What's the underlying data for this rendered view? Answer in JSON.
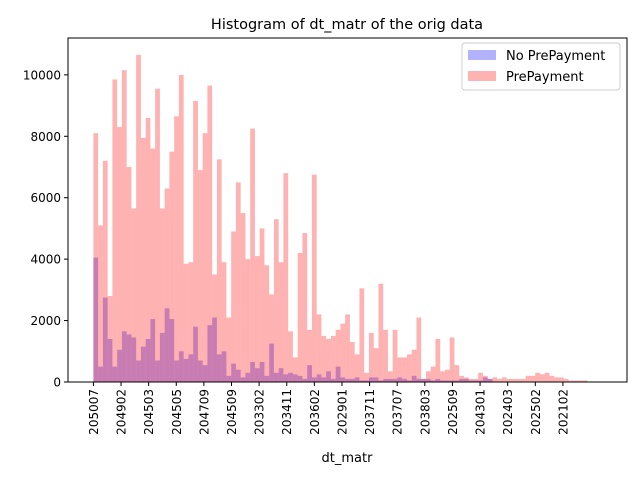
{
  "chart_data": {
    "type": "bar",
    "title": "Histogram of dt_matr of the orig data",
    "xlabel": "dt_matr",
    "ylabel": "",
    "ylim": [
      0,
      11200
    ],
    "yticks": [
      0,
      2000,
      4000,
      6000,
      8000,
      10000
    ],
    "xlim": [
      -2.3,
      48.3
    ],
    "x_tick_labels": [
      "205007",
      "204902",
      "204503",
      "204505",
      "204709",
      "204509",
      "203302",
      "203411",
      "203602",
      "202901",
      "203711",
      "203707",
      "203803",
      "202509",
      "204301",
      "202403",
      "202502",
      "202102"
    ],
    "x_tick_positions": [
      0,
      2.5,
      5,
      7.5,
      10,
      12.5,
      15,
      17.5,
      20,
      22.5,
      25,
      27.5,
      30,
      32.5,
      35,
      37.5,
      40,
      42.5
    ],
    "bin_width": 0.43,
    "bin_start": 0,
    "legend_position": "upper right",
    "series": [
      {
        "name": "No PrePayment",
        "color": "#0000ff",
        "alpha": 0.3,
        "values": [
          4050,
          500,
          2750,
          1400,
          500,
          1050,
          1650,
          1550,
          1450,
          700,
          1150,
          1400,
          2050,
          700,
          1600,
          2400,
          2050,
          700,
          1000,
          750,
          900,
          1800,
          700,
          550,
          1850,
          2100,
          900,
          1000,
          200,
          600,
          400,
          150,
          300,
          650,
          450,
          650,
          200,
          1250,
          300,
          450,
          250,
          300,
          250,
          200,
          100,
          550,
          150,
          250,
          150,
          350,
          100,
          500,
          150,
          100,
          100,
          150,
          50,
          50,
          150,
          150,
          50,
          100,
          100,
          100,
          150,
          100,
          50,
          200,
          100,
          100,
          100,
          50,
          100,
          50,
          50,
          50,
          50,
          100,
          100,
          50,
          50,
          50,
          150,
          100,
          0,
          0,
          0,
          0,
          0,
          0,
          0,
          0,
          0,
          0,
          0,
          0,
          0,
          0,
          0,
          0,
          0,
          0,
          0,
          0,
          0,
          0,
          0,
          0,
          0,
          0,
          0,
          0,
          0,
          0,
          0,
          0
        ]
      },
      {
        "name": "PrePayment",
        "color": "#ff0000",
        "alpha": 0.3,
        "values": [
          8100,
          5100,
          7200,
          2800,
          9850,
          8300,
          10150,
          7000,
          5650,
          10650,
          7950,
          8600,
          7600,
          9550,
          5650,
          6300,
          7500,
          8650,
          10000,
          3850,
          3900,
          9150,
          6900,
          8100,
          9650,
          3500,
          7250,
          3900,
          2100,
          4900,
          6500,
          5500,
          4000,
          8250,
          4100,
          5000,
          3800,
          2850,
          5300,
          3900,
          6800,
          1650,
          800,
          4200,
          4850,
          1700,
          6750,
          2200,
          1500,
          1400,
          1500,
          1700,
          1900,
          2200,
          1300,
          900,
          3050,
          300,
          1600,
          1100,
          3200,
          1700,
          350,
          1700,
          800,
          800,
          900,
          1050,
          2100,
          100,
          350,
          500,
          1400,
          350,
          400,
          1450,
          550,
          200,
          150,
          100,
          100,
          300,
          200,
          100,
          150,
          100,
          150,
          100,
          100,
          100,
          100,
          200,
          200,
          300,
          250,
          300,
          200,
          150,
          150,
          100,
          50,
          50,
          50,
          50,
          0,
          0,
          0,
          0,
          0,
          0,
          0,
          0,
          0,
          0,
          0,
          0
        ]
      }
    ]
  }
}
